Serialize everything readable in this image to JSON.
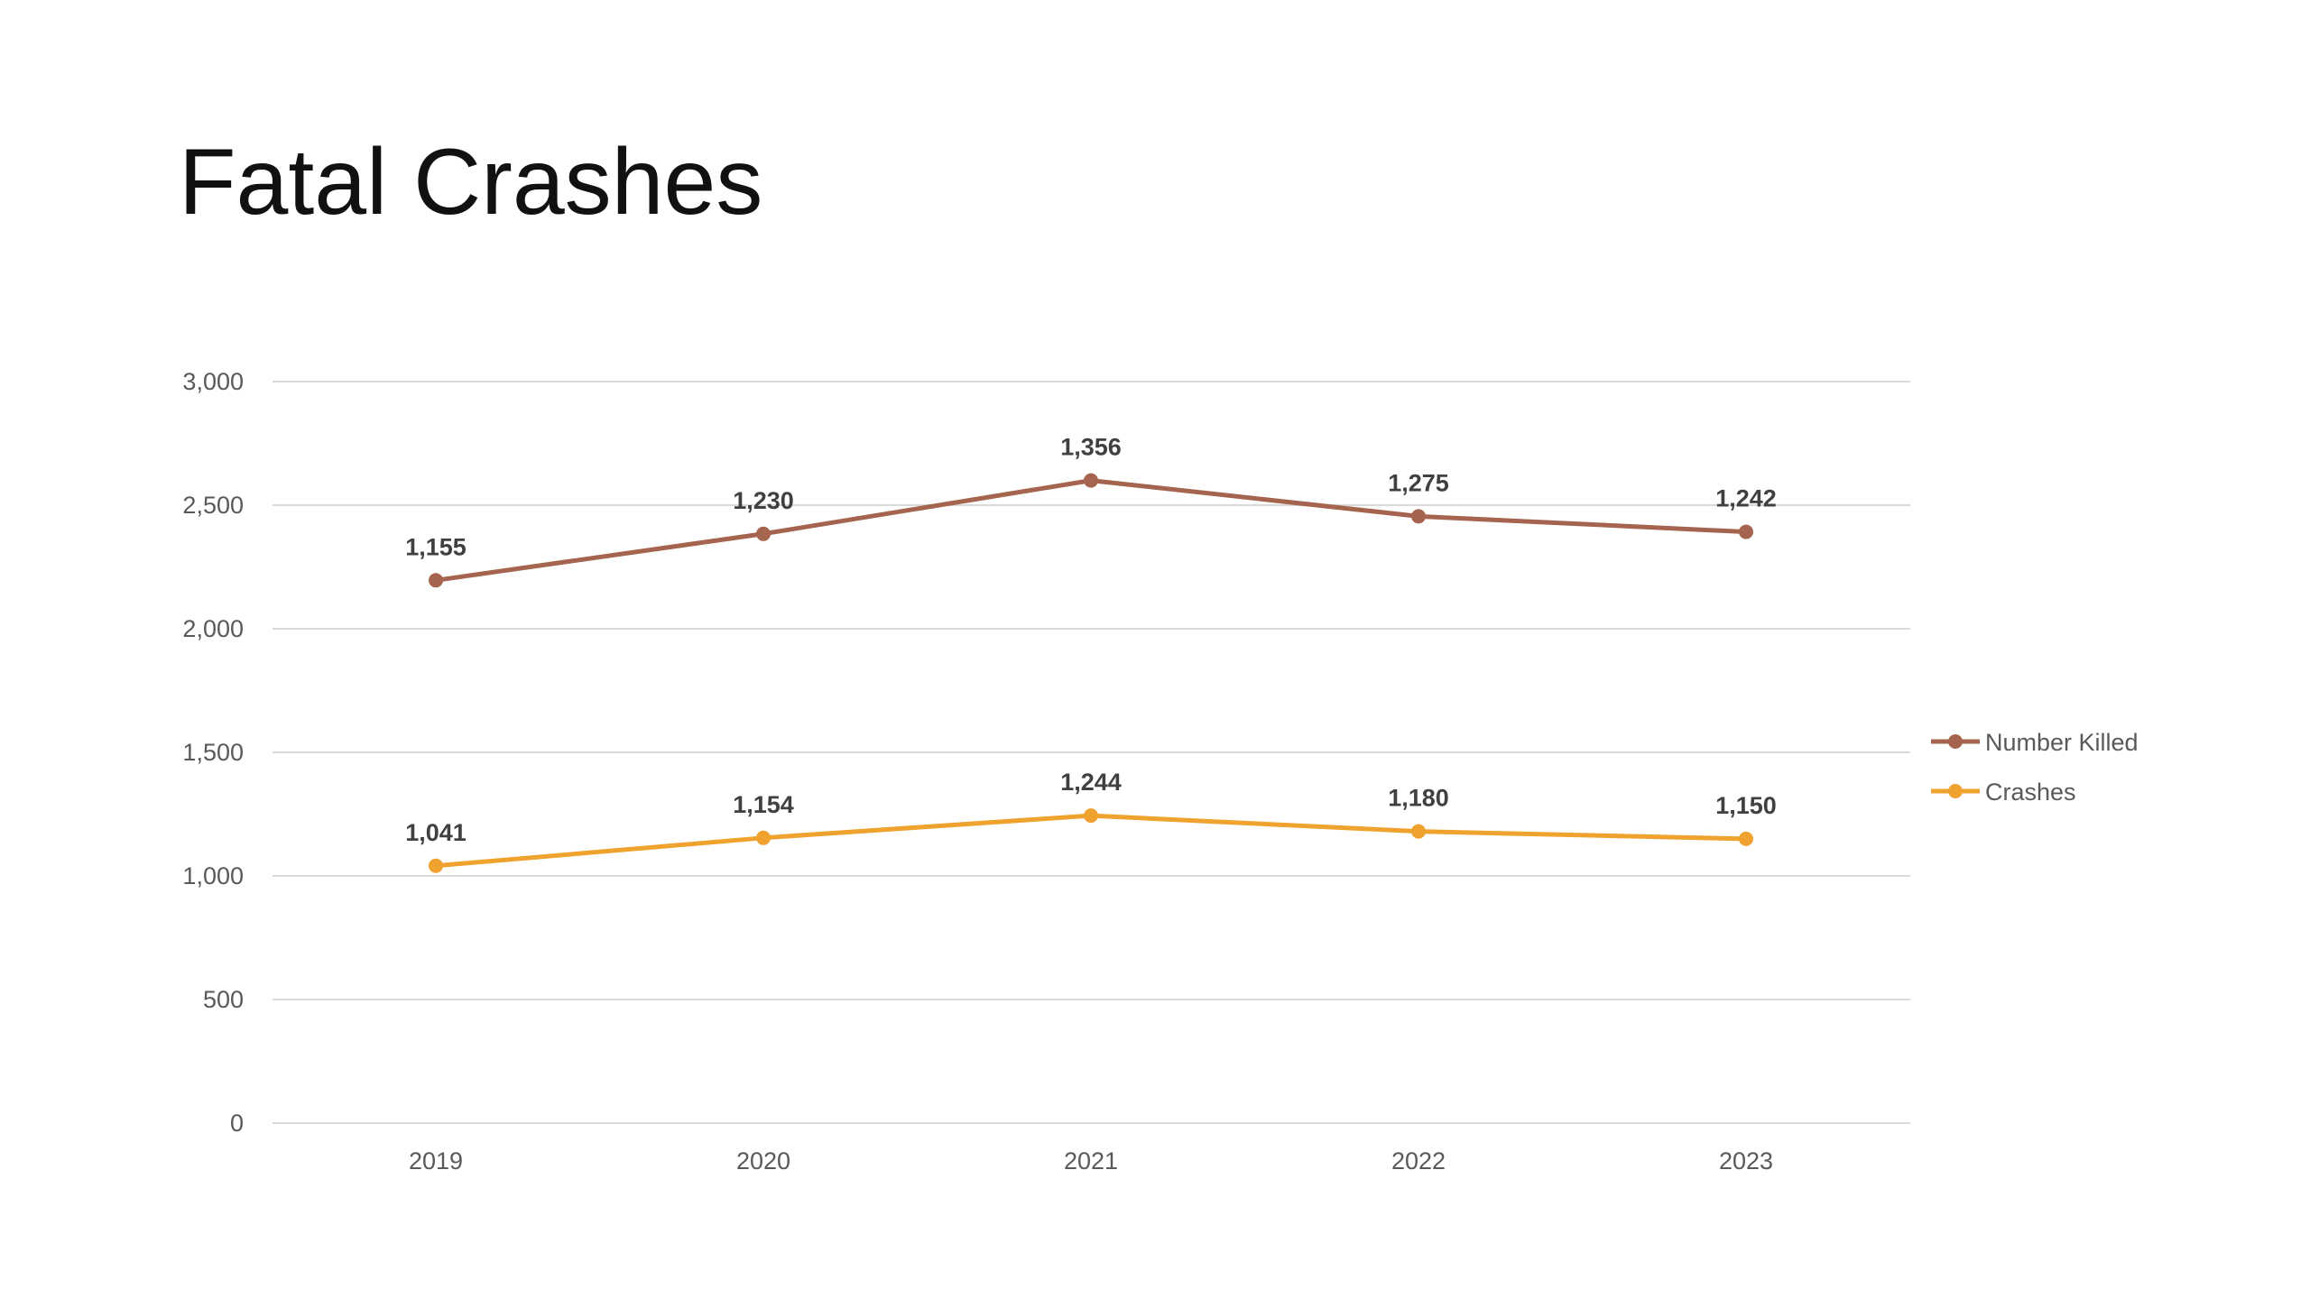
{
  "slide": {
    "title": "Fatal Crashes"
  },
  "chart_data": {
    "type": "line",
    "title": "",
    "xlabel": "",
    "ylabel": "",
    "ylim": [
      0,
      3000
    ],
    "yticks": [
      0,
      500,
      1000,
      1500,
      2000,
      2500,
      3000
    ],
    "ytick_labels": [
      "0",
      "500",
      "1,000",
      "1,500",
      "2,000",
      "2,500",
      "3,000"
    ],
    "stacked": true,
    "grid": true,
    "legend_position": "right",
    "categories": [
      "2019",
      "2020",
      "2021",
      "2022",
      "2023"
    ],
    "series": [
      {
        "name": "Crashes",
        "color": "#F0A22E",
        "values": [
          1041,
          1154,
          1244,
          1180,
          1150
        ],
        "labels": [
          "1,041",
          "1,154",
          "1,244",
          "1,180",
          "1,150"
        ]
      },
      {
        "name": "Number Killed",
        "color": "#A5644E",
        "values": [
          1155,
          1230,
          1356,
          1275,
          1242
        ],
        "labels": [
          "1,155",
          "1,230",
          "1,356",
          "1,275",
          "1,242"
        ]
      }
    ],
    "legend_order": [
      "Number Killed",
      "Crashes"
    ]
  }
}
